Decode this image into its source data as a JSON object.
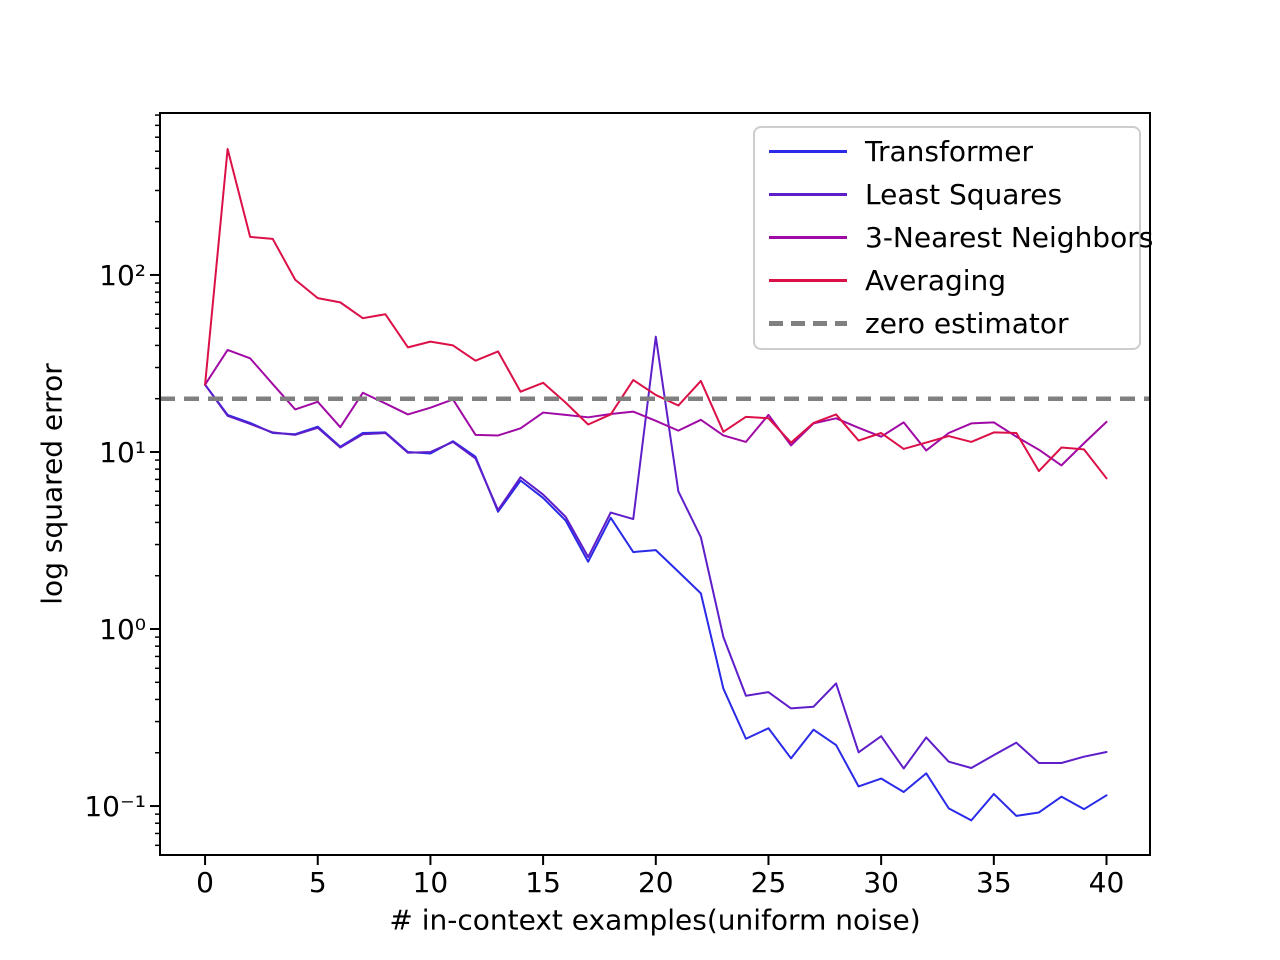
{
  "chart_data": {
    "type": "line",
    "xlabel": "# in-context examples(uniform noise)",
    "ylabel": "log squared error",
    "x": [
      0,
      1,
      2,
      3,
      4,
      5,
      6,
      7,
      8,
      9,
      10,
      11,
      12,
      13,
      14,
      15,
      16,
      17,
      18,
      19,
      20,
      21,
      22,
      23,
      24,
      25,
      26,
      27,
      28,
      29,
      30,
      31,
      32,
      33,
      34,
      35,
      36,
      37,
      38,
      39,
      40
    ],
    "series": [
      {
        "name": "Transformer",
        "color": "#2a2ae8",
        "values": [
          24,
          16.2,
          14.6,
          12.8,
          12.6,
          13.9,
          10.7,
          12.8,
          12.9,
          10.0,
          9.8,
          11.5,
          9.4,
          4.6,
          6.9,
          5.5,
          4.1,
          2.4,
          4.25,
          2.72,
          2.79,
          2.11,
          1.59,
          0.46,
          0.24,
          0.275,
          0.186,
          0.27,
          0.221,
          0.129,
          0.143,
          0.12,
          0.153,
          0.097,
          0.083,
          0.117,
          0.088,
          0.092,
          0.113,
          0.096,
          0.115
        ]
      },
      {
        "name": "Least Squares",
        "color": "#5e1ec9",
        "values": [
          24,
          16.0,
          14.4,
          12.9,
          12.5,
          13.7,
          10.6,
          12.6,
          12.8,
          9.9,
          10.0,
          11.4,
          9.2,
          4.7,
          7.2,
          5.75,
          4.3,
          2.55,
          4.55,
          4.18,
          44.8,
          6.0,
          3.3,
          0.9,
          0.42,
          0.44,
          0.356,
          0.364,
          0.493,
          0.201,
          0.248,
          0.163,
          0.244,
          0.178,
          0.164,
          0.194,
          0.228,
          0.175,
          0.175,
          0.19,
          0.202
        ]
      },
      {
        "name": "3-Nearest Neighbors",
        "color": "#a00aa5",
        "values": [
          24,
          37.7,
          33.8,
          24.2,
          17.4,
          19.2,
          13.8,
          21.6,
          18.8,
          16.3,
          17.8,
          19.8,
          12.5,
          12.4,
          13.6,
          16.7,
          16.2,
          15.7,
          16.4,
          16.9,
          15.0,
          13.2,
          15.2,
          12.4,
          11.4,
          16.2,
          10.9,
          14.5,
          15.5,
          13.7,
          12.2,
          14.7,
          10.2,
          12.8,
          14.5,
          14.7,
          12.2,
          10.3,
          8.4,
          11.2,
          14.8
        ]
      },
      {
        "name": "Averaging",
        "color": "#dc1048",
        "values": [
          24,
          515,
          164,
          160,
          94,
          74,
          70,
          57,
          60,
          39,
          42,
          40,
          32.8,
          37,
          21.9,
          24.6,
          19.0,
          14.3,
          16.3,
          25.5,
          21.0,
          18.3,
          25.2,
          13.0,
          15.8,
          15.5,
          11.3,
          14.6,
          16.3,
          11.6,
          12.8,
          10.4,
          11.3,
          12.3,
          11.4,
          12.9,
          12.8,
          7.8,
          10.6,
          10.35,
          7.1
        ]
      }
    ],
    "zero_estimator": {
      "label": "zero estimator",
      "value": 20,
      "color": "#808080",
      "style": "dashed"
    },
    "axes": {
      "x_ticks": [
        0,
        5,
        10,
        15,
        20,
        25,
        30,
        35,
        40
      ],
      "y_scale": "log",
      "y_tick_values": [
        100,
        10,
        1,
        0.1
      ],
      "y_tick_labels": [
        "10²",
        "10¹",
        "10⁰",
        "10⁻¹"
      ],
      "xlim": [
        -2,
        41.93
      ],
      "ylim": [
        0.0529,
        822
      ],
      "grid": false,
      "legend_position": "upper right"
    }
  }
}
